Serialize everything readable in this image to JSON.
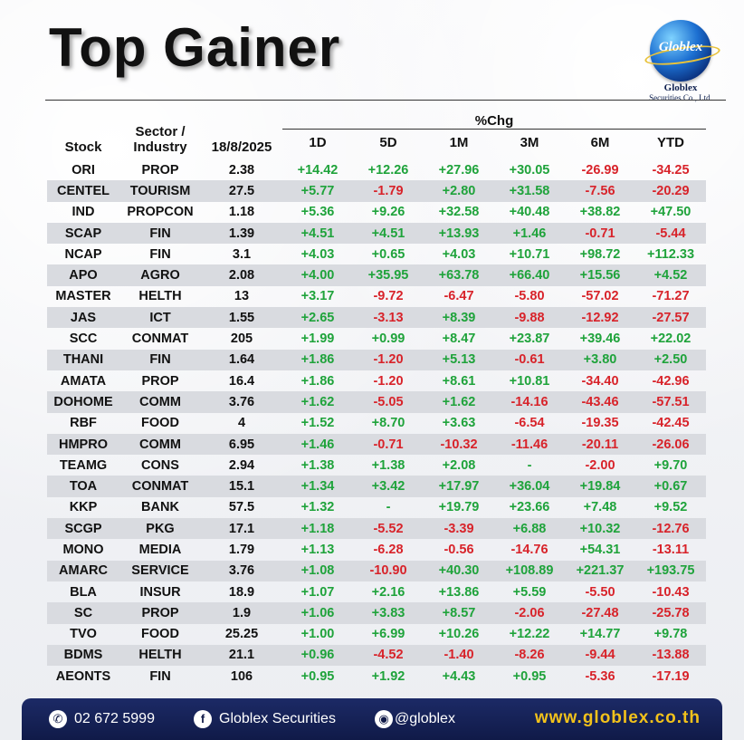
{
  "header": {
    "title": "Top Gainer",
    "logo": {
      "name": "Globlex",
      "line1": "Globlex",
      "line2": "Securities Co., Ltd."
    }
  },
  "table": {
    "headers": {
      "stock": "Stock",
      "sector": "Sector /",
      "industry": "Industry",
      "date": "18/8/2025",
      "pct_group": "%Chg",
      "periods": [
        "1D",
        "5D",
        "1M",
        "3M",
        "6M",
        "YTD"
      ]
    },
    "rows": [
      [
        "ORI",
        "PROP",
        "2.38",
        "+14.42",
        "+12.26",
        "+27.96",
        "+30.05",
        "-26.99",
        "-34.25"
      ],
      [
        "CENTEL",
        "TOURISM",
        "27.5",
        "+5.77",
        "-1.79",
        "+2.80",
        "+31.58",
        "-7.56",
        "-20.29"
      ],
      [
        "IND",
        "PROPCON",
        "1.18",
        "+5.36",
        "+9.26",
        "+32.58",
        "+40.48",
        "+38.82",
        "+47.50"
      ],
      [
        "SCAP",
        "FIN",
        "1.39",
        "+4.51",
        "+4.51",
        "+13.93",
        "+1.46",
        "-0.71",
        "-5.44"
      ],
      [
        "NCAP",
        "FIN",
        "3.1",
        "+4.03",
        "+0.65",
        "+4.03",
        "+10.71",
        "+98.72",
        "+112.33"
      ],
      [
        "APO",
        "AGRO",
        "2.08",
        "+4.00",
        "+35.95",
        "+63.78",
        "+66.40",
        "+15.56",
        "+4.52"
      ],
      [
        "MASTER",
        "HELTH",
        "13",
        "+3.17",
        "-9.72",
        "-6.47",
        "-5.80",
        "-57.02",
        "-71.27"
      ],
      [
        "JAS",
        "ICT",
        "1.55",
        "+2.65",
        "-3.13",
        "+8.39",
        "-9.88",
        "-12.92",
        "-27.57"
      ],
      [
        "SCC",
        "CONMAT",
        "205",
        "+1.99",
        "+0.99",
        "+8.47",
        "+23.87",
        "+39.46",
        "+22.02"
      ],
      [
        "THANI",
        "FIN",
        "1.64",
        "+1.86",
        "-1.20",
        "+5.13",
        "-0.61",
        "+3.80",
        "+2.50"
      ],
      [
        "AMATA",
        "PROP",
        "16.4",
        "+1.86",
        "-1.20",
        "+8.61",
        "+10.81",
        "-34.40",
        "-42.96"
      ],
      [
        "DOHOME",
        "COMM",
        "3.76",
        "+1.62",
        "-5.05",
        "+1.62",
        "-14.16",
        "-43.46",
        "-57.51"
      ],
      [
        "RBF",
        "FOOD",
        "4",
        "+1.52",
        "+8.70",
        "+3.63",
        "-6.54",
        "-19.35",
        "-42.45"
      ],
      [
        "HMPRO",
        "COMM",
        "6.95",
        "+1.46",
        "-0.71",
        "-10.32",
        "-11.46",
        "-20.11",
        "-26.06"
      ],
      [
        "TEAMG",
        "CONS",
        "2.94",
        "+1.38",
        "+1.38",
        "+2.08",
        "-",
        "-2.00",
        "+9.70"
      ],
      [
        "TOA",
        "CONMAT",
        "15.1",
        "+1.34",
        "+3.42",
        "+17.97",
        "+36.04",
        "+19.84",
        "+0.67"
      ],
      [
        "KKP",
        "BANK",
        "57.5",
        "+1.32",
        "-",
        "+19.79",
        "+23.66",
        "+7.48",
        "+9.52"
      ],
      [
        "SCGP",
        "PKG",
        "17.1",
        "+1.18",
        "-5.52",
        "-3.39",
        "+6.88",
        "+10.32",
        "-12.76"
      ],
      [
        "MONO",
        "MEDIA",
        "1.79",
        "+1.13",
        "-6.28",
        "-0.56",
        "-14.76",
        "+54.31",
        "-13.11"
      ],
      [
        "AMARC",
        "SERVICE",
        "3.76",
        "+1.08",
        "-10.90",
        "+40.30",
        "+108.89",
        "+221.37",
        "+193.75"
      ],
      [
        "BLA",
        "INSUR",
        "18.9",
        "+1.07",
        "+2.16",
        "+13.86",
        "+5.59",
        "-5.50",
        "-10.43"
      ],
      [
        "SC",
        "PROP",
        "1.9",
        "+1.06",
        "+3.83",
        "+8.57",
        "-2.06",
        "-27.48",
        "-25.78"
      ],
      [
        "TVO",
        "FOOD",
        "25.25",
        "+1.00",
        "+6.99",
        "+10.26",
        "+12.22",
        "+14.77",
        "+9.78"
      ],
      [
        "BDMS",
        "HELTH",
        "21.1",
        "+0.96",
        "-4.52",
        "-1.40",
        "-8.26",
        "-9.44",
        "-13.88"
      ],
      [
        "AEONTS",
        "FIN",
        "106",
        "+0.95",
        "+1.92",
        "+4.43",
        "+0.95",
        "-5.36",
        "-17.19"
      ]
    ]
  },
  "footer": {
    "phone": "02 672 5999",
    "facebook": "Globlex Securities",
    "line": "@globlex",
    "website": "www.globlex.co.th"
  },
  "colors": {
    "positive": "#1fa33b",
    "negative": "#d8232a",
    "footer_bg": "#101a48",
    "site": "#f2c21b"
  },
  "icons": {
    "phone": "phone-icon",
    "facebook": "facebook-icon",
    "line": "line-icon"
  }
}
